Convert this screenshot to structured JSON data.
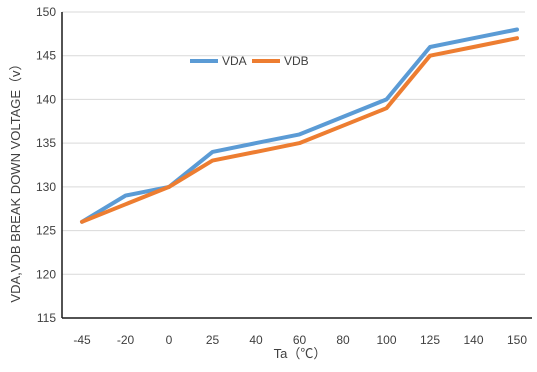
{
  "chart_data": {
    "type": "line",
    "title": "",
    "xlabel": "Ta（℃）",
    "ylabel": "VDA,VDB BREAK DOWN VOLTAGE（v）",
    "categories": [
      "-45",
      "-20",
      "0",
      "25",
      "40",
      "60",
      "80",
      "100",
      "125",
      "140",
      "150"
    ],
    "ylim": [
      115,
      150
    ],
    "yticks": [
      "115",
      "120",
      "125",
      "130",
      "135",
      "140",
      "145",
      "150"
    ],
    "grid": true,
    "legend_position": "top-left",
    "series": [
      {
        "name": "VDA",
        "color": "#5B9BD5",
        "values": [
          126,
          129,
          130,
          134,
          135,
          136,
          138,
          140,
          146,
          147,
          148
        ]
      },
      {
        "name": "VDB",
        "color": "#ED7D31",
        "values": [
          126,
          128,
          130,
          133,
          134,
          135,
          137,
          139,
          145,
          146,
          147
        ]
      }
    ]
  }
}
